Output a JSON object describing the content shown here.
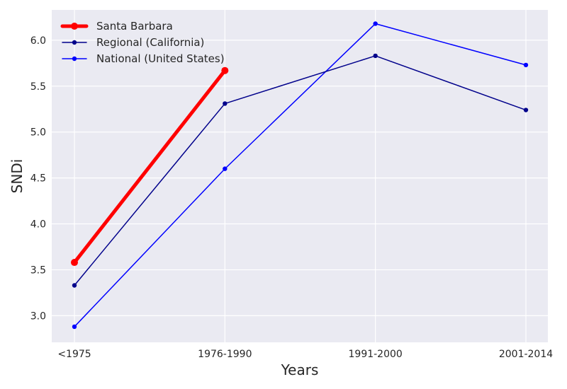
{
  "chart_data": {
    "type": "line",
    "title": "",
    "xlabel": "Years",
    "ylabel": "SNDi",
    "categories": [
      "<1975",
      "1976-1990",
      "1991-2000",
      "2001-2014"
    ],
    "ylim": [
      2.71,
      6.33
    ],
    "yticks": [
      3.0,
      3.5,
      4.0,
      4.5,
      5.0,
      5.5,
      6.0
    ],
    "ytick_labels": [
      "3.0",
      "3.5",
      "4.0",
      "4.5",
      "5.0",
      "5.5",
      "6.0"
    ],
    "grid": true,
    "legend_position": "top-left",
    "series": [
      {
        "name": "Santa Barbara",
        "values": [
          3.58,
          5.67,
          null,
          null
        ],
        "color": "#ff0000",
        "emphasis": true
      },
      {
        "name": "Regional (California)",
        "values": [
          3.33,
          5.31,
          5.83,
          5.24
        ],
        "color": "#00008b",
        "emphasis": false
      },
      {
        "name": "National (United States)",
        "values": [
          2.88,
          4.6,
          6.18,
          5.73
        ],
        "color": "#0000ff",
        "emphasis": false
      }
    ]
  }
}
